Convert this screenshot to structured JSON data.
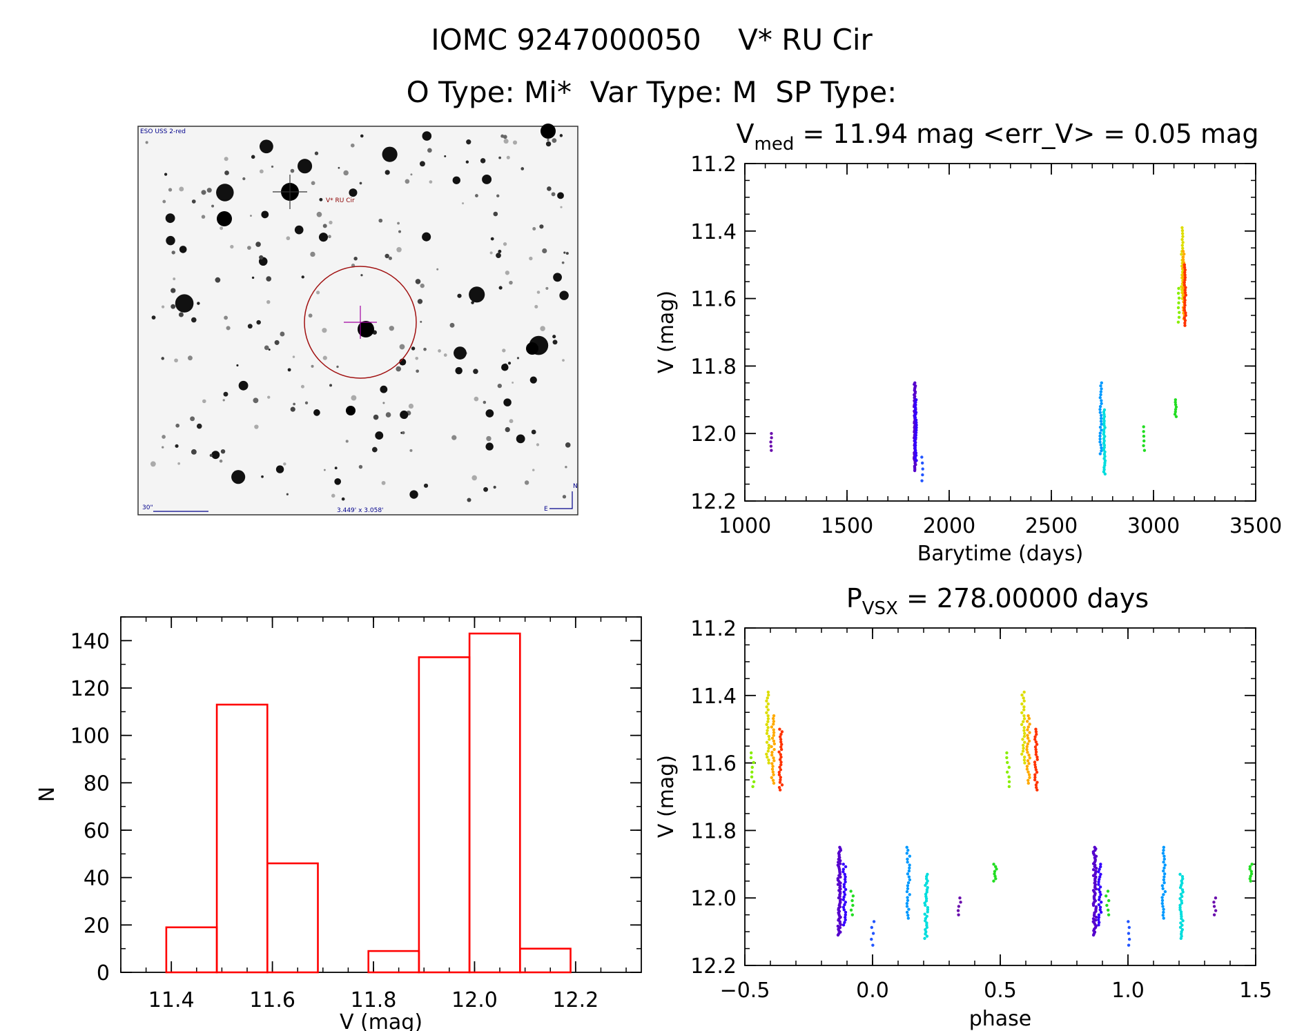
{
  "header": {
    "line1": "IOMC 9247000050    V* RU Cir",
    "line2": "O Type: Mi*  Var Type: M  SP Type:"
  },
  "finder": {
    "survey_label": "ESO USS 2-red",
    "target_label": "V* RU Cir",
    "scale_label": "30\"",
    "size_label": "3.449' x 3.058'",
    "north_label": "N",
    "east_label": "E"
  },
  "chart_data": [
    {
      "id": "lightcurve",
      "type": "scatter",
      "title_main": "V",
      "title_sub": "med",
      "title_rest": " = 11.94 mag <err_V> = 0.05 mag",
      "xlabel": "Barytime (days)",
      "ylabel": "V (mag)",
      "xlim": [
        1000,
        3500
      ],
      "ylim": [
        11.2,
        12.2
      ],
      "y_inverted": true,
      "xticks": [
        "1000",
        "1500",
        "2000",
        "2500",
        "3000",
        "3500"
      ],
      "yticks": [
        "11.2",
        "11.4",
        "11.6",
        "11.8",
        "12.0",
        "12.2"
      ],
      "groups": [
        {
          "x": 1130,
          "ymin": 12.0,
          "ymax": 12.05,
          "color": "#6a0dad",
          "n": 5
        },
        {
          "x": 1832,
          "ymin": 11.85,
          "ymax": 12.11,
          "color": "#5500cc",
          "n": 60
        },
        {
          "x": 1836,
          "ymin": 11.9,
          "ymax": 12.08,
          "color": "#3300ff",
          "n": 25
        },
        {
          "x": 1870,
          "ymin": 12.07,
          "ymax": 12.14,
          "color": "#2255ff",
          "n": 5
        },
        {
          "x": 2742,
          "ymin": 11.85,
          "ymax": 12.06,
          "color": "#0099ff",
          "n": 25
        },
        {
          "x": 2760,
          "ymin": 11.93,
          "ymax": 12.12,
          "color": "#00dddd",
          "n": 30
        },
        {
          "x": 2955,
          "ymin": 11.98,
          "ymax": 12.05,
          "color": "#22dd22",
          "n": 6
        },
        {
          "x": 3108,
          "ymin": 11.9,
          "ymax": 11.95,
          "color": "#22dd22",
          "n": 8
        },
        {
          "x": 3122,
          "ymin": 11.57,
          "ymax": 11.67,
          "color": "#88ee00",
          "n": 8
        },
        {
          "x": 3140,
          "ymin": 11.39,
          "ymax": 11.6,
          "color": "#dddd00",
          "n": 25
        },
        {
          "x": 3148,
          "ymin": 11.46,
          "ymax": 11.66,
          "color": "#ffaa00",
          "n": 25
        },
        {
          "x": 3155,
          "ymin": 11.5,
          "ymax": 11.68,
          "color": "#ff3300",
          "n": 25
        }
      ]
    },
    {
      "id": "histogram",
      "type": "bar",
      "xlabel": "V (mag)",
      "ylabel": "N",
      "xlim": [
        11.3,
        12.33
      ],
      "ylim": [
        0,
        150
      ],
      "xticks": [
        "11.4",
        "11.6",
        "11.8",
        "12.0",
        "12.2"
      ],
      "yticks": [
        "0",
        "20",
        "40",
        "60",
        "80",
        "100",
        "120",
        "140"
      ],
      "bins": [
        {
          "from": 11.39,
          "to": 11.49,
          "count": 19
        },
        {
          "from": 11.49,
          "to": 11.59,
          "count": 113
        },
        {
          "from": 11.59,
          "to": 11.69,
          "count": 46
        },
        {
          "from": 11.69,
          "to": 11.79,
          "count": 0
        },
        {
          "from": 11.79,
          "to": 11.89,
          "count": 9
        },
        {
          "from": 11.89,
          "to": 11.99,
          "count": 133
        },
        {
          "from": 11.99,
          "to": 12.09,
          "count": 143
        },
        {
          "from": 12.09,
          "to": 12.19,
          "count": 10
        }
      ],
      "color": "#ff0000"
    },
    {
      "id": "phased",
      "type": "scatter",
      "title_main": "P",
      "title_sub": "VSX",
      "title_rest": " = 278.00000 days",
      "xlabel": "phase",
      "ylabel": "V (mag)",
      "xlim": [
        -0.5,
        1.5
      ],
      "ylim": [
        11.2,
        12.2
      ],
      "y_inverted": true,
      "xticks": [
        "−0.5",
        "0.0",
        "0.5",
        "1.0",
        "1.5"
      ],
      "yticks": [
        "11.2",
        "11.4",
        "11.6",
        "11.8",
        "12.0",
        "12.2"
      ]
    }
  ],
  "colors": {
    "axis": "#000000",
    "histogram": "#ff0000",
    "finder_circle": "#a01010"
  }
}
